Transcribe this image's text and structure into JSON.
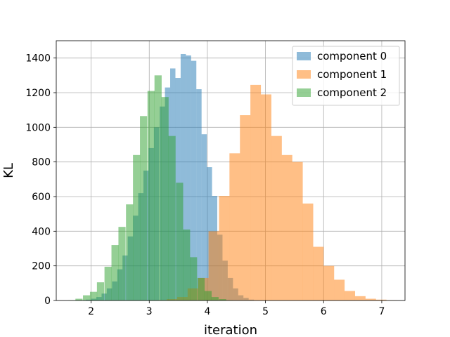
{
  "chart_data": {
    "type": "bar",
    "xlabel": "iteration",
    "ylabel": "KL",
    "xlim": [
      1.4,
      7.4
    ],
    "ylim": [
      0,
      1500
    ],
    "xticks": [
      "2",
      "3",
      "4",
      "5",
      "6",
      "7"
    ],
    "yticks": [
      "0",
      "200",
      "400",
      "600",
      "800",
      "1000",
      "1200",
      "1400"
    ],
    "grid": true,
    "legend_position": "top-right",
    "series": [
      {
        "name": "component 0",
        "color": "#1f77b4",
        "opacity": 0.5,
        "bin_width": 0.0903,
        "bins": [
          [
            1.82,
            2
          ],
          [
            1.91,
            5
          ],
          [
            2.0,
            10
          ],
          [
            2.09,
            20
          ],
          [
            2.18,
            40
          ],
          [
            2.27,
            70
          ],
          [
            2.36,
            110
          ],
          [
            2.45,
            180
          ],
          [
            2.54,
            260
          ],
          [
            2.63,
            370
          ],
          [
            2.72,
            490
          ],
          [
            2.81,
            620
          ],
          [
            2.9,
            750
          ],
          [
            2.99,
            880
          ],
          [
            3.08,
            1000
          ],
          [
            3.18,
            1120
          ],
          [
            3.27,
            1230
          ],
          [
            3.36,
            1340
          ],
          [
            3.45,
            1285
          ],
          [
            3.54,
            1423
          ],
          [
            3.63,
            1415
          ],
          [
            3.72,
            1384
          ],
          [
            3.81,
            1220
          ],
          [
            3.9,
            960
          ],
          [
            3.99,
            770
          ],
          [
            4.08,
            604
          ],
          [
            4.17,
            380
          ],
          [
            4.26,
            230
          ],
          [
            4.35,
            130
          ],
          [
            4.44,
            70
          ],
          [
            4.53,
            30
          ],
          [
            4.62,
            15
          ],
          [
            4.71,
            5
          ],
          [
            4.8,
            2
          ]
        ]
      },
      {
        "name": "component 1",
        "color": "#ff7f0e",
        "opacity": 0.5,
        "bin_width": 0.181,
        "bins": [
          [
            3.12,
            2
          ],
          [
            3.3,
            8
          ],
          [
            3.48,
            20
          ],
          [
            3.66,
            70
          ],
          [
            3.84,
            130
          ],
          [
            4.02,
            400
          ],
          [
            4.2,
            604
          ],
          [
            4.38,
            850
          ],
          [
            4.56,
            1070
          ],
          [
            4.74,
            1245
          ],
          [
            4.92,
            1190
          ],
          [
            5.1,
            950
          ],
          [
            5.28,
            840
          ],
          [
            5.46,
            800
          ],
          [
            5.64,
            560
          ],
          [
            5.82,
            310
          ],
          [
            6.0,
            200
          ],
          [
            6.18,
            120
          ],
          [
            6.36,
            55
          ],
          [
            6.54,
            25
          ],
          [
            6.72,
            10
          ],
          [
            6.9,
            5
          ],
          [
            7.08,
            2
          ]
        ]
      },
      {
        "name": "component 2",
        "color": "#2ca02c",
        "opacity": 0.5,
        "bin_width": 0.1233,
        "bins": [
          [
            1.61,
            2
          ],
          [
            1.73,
            10
          ],
          [
            1.86,
            30
          ],
          [
            1.98,
            50
          ],
          [
            2.1,
            105
          ],
          [
            2.23,
            195
          ],
          [
            2.35,
            320
          ],
          [
            2.47,
            425
          ],
          [
            2.6,
            555
          ],
          [
            2.72,
            840
          ],
          [
            2.84,
            1065
          ],
          [
            2.97,
            1210
          ],
          [
            3.09,
            1300
          ],
          [
            3.21,
            1175
          ],
          [
            3.33,
            950
          ],
          [
            3.46,
            680
          ],
          [
            3.58,
            410
          ],
          [
            3.7,
            250
          ],
          [
            3.83,
            130
          ],
          [
            3.95,
            55
          ],
          [
            4.07,
            20
          ],
          [
            4.2,
            8
          ],
          [
            4.32,
            2
          ]
        ]
      }
    ]
  }
}
